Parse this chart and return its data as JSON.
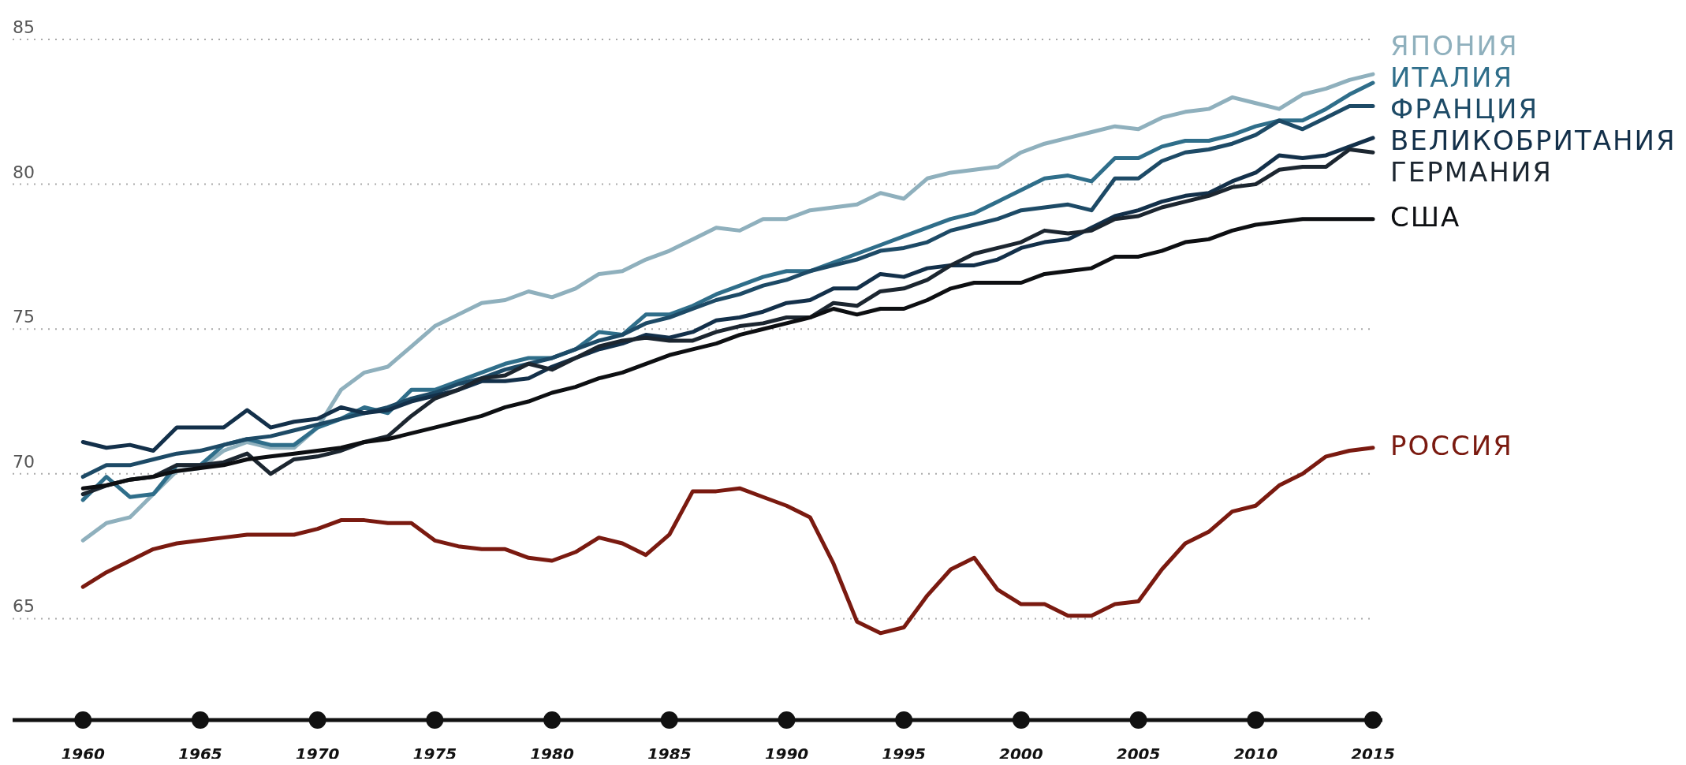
{
  "chart_data": {
    "type": "line",
    "x": [
      1960,
      1961,
      1962,
      1963,
      1964,
      1965,
      1966,
      1967,
      1968,
      1969,
      1970,
      1971,
      1972,
      1973,
      1974,
      1975,
      1976,
      1977,
      1978,
      1979,
      1980,
      1981,
      1982,
      1983,
      1984,
      1985,
      1986,
      1987,
      1988,
      1989,
      1990,
      1991,
      1992,
      1993,
      1994,
      1995,
      1996,
      1997,
      1998,
      1999,
      2000,
      2001,
      2002,
      2003,
      2004,
      2005,
      2006,
      2007,
      2008,
      2009,
      2010,
      2011,
      2012,
      2013,
      2014,
      2015
    ],
    "xlim": [
      1957,
      2015
    ],
    "xticks": [
      1960,
      1965,
      1970,
      1975,
      1980,
      1985,
      1990,
      1995,
      2000,
      2005,
      2010,
      2015
    ],
    "ylim": [
      61.5,
      85
    ],
    "yticks": [
      65,
      70,
      75,
      80,
      85
    ],
    "grid": "y",
    "legend": false,
    "marker": "none",
    "line_style": "solid",
    "series": [
      {
        "name": "ЯПОНИЯ",
        "color": "#8fb0bd",
        "values": [
          67.7,
          68.3,
          68.5,
          69.3,
          70.1,
          70.2,
          70.8,
          71.1,
          70.9,
          70.9,
          71.6,
          72.9,
          73.5,
          73.7,
          74.4,
          75.1,
          75.5,
          75.9,
          76.0,
          76.3,
          76.1,
          76.4,
          76.9,
          77.0,
          77.4,
          77.7,
          78.1,
          78.5,
          78.4,
          78.8,
          78.8,
          79.1,
          79.2,
          79.3,
          79.7,
          79.5,
          80.2,
          80.4,
          80.5,
          80.6,
          81.1,
          81.4,
          81.6,
          81.8,
          82.0,
          81.9,
          82.3,
          82.5,
          82.6,
          83.0,
          82.8,
          82.6,
          83.1,
          83.3,
          83.6,
          83.8
        ]
      },
      {
        "name": "ИТАЛИЯ",
        "color": "#2f6e8a",
        "values": [
          69.1,
          69.9,
          69.2,
          69.3,
          70.3,
          70.3,
          71.0,
          71.2,
          71.0,
          71.0,
          71.6,
          71.9,
          72.3,
          72.1,
          72.9,
          72.9,
          73.2,
          73.5,
          73.8,
          74.0,
          74.0,
          74.3,
          74.9,
          74.8,
          75.5,
          75.5,
          75.8,
          76.2,
          76.5,
          76.8,
          77.0,
          77.0,
          77.3,
          77.6,
          77.9,
          78.2,
          78.5,
          78.8,
          79.0,
          79.4,
          79.8,
          80.2,
          80.3,
          80.1,
          80.9,
          80.9,
          81.3,
          81.5,
          81.5,
          81.7,
          82.0,
          82.2,
          82.2,
          82.6,
          83.1,
          83.5
        ]
      },
      {
        "name": "ФРАНЦИЯ",
        "color": "#1d4a66",
        "values": [
          69.9,
          70.3,
          70.3,
          70.5,
          70.7,
          70.8,
          71.0,
          71.2,
          71.3,
          71.5,
          71.7,
          71.9,
          72.1,
          72.3,
          72.6,
          72.8,
          73.1,
          73.3,
          73.6,
          73.8,
          74.0,
          74.3,
          74.6,
          74.8,
          75.2,
          75.4,
          75.7,
          76.0,
          76.2,
          76.5,
          76.7,
          77.0,
          77.2,
          77.4,
          77.7,
          77.8,
          78.0,
          78.4,
          78.6,
          78.8,
          79.1,
          79.2,
          79.3,
          79.1,
          80.2,
          80.2,
          80.8,
          81.1,
          81.2,
          81.4,
          81.7,
          82.2,
          81.9,
          82.3,
          82.7,
          82.7
        ]
      },
      {
        "name": "ВЕЛИКОБРИТАНИЯ",
        "color": "#13304a",
        "values": [
          71.1,
          70.9,
          71.0,
          70.8,
          71.6,
          71.6,
          71.6,
          72.2,
          71.6,
          71.8,
          71.9,
          72.3,
          72.1,
          72.2,
          72.5,
          72.7,
          72.9,
          73.2,
          73.2,
          73.3,
          73.7,
          74.0,
          74.3,
          74.5,
          74.8,
          74.7,
          74.9,
          75.3,
          75.4,
          75.6,
          75.9,
          76.0,
          76.4,
          76.4,
          76.9,
          76.8,
          77.1,
          77.2,
          77.2,
          77.4,
          77.8,
          78.0,
          78.1,
          78.5,
          78.9,
          79.1,
          79.4,
          79.6,
          79.7,
          80.1,
          80.4,
          81.0,
          80.9,
          81.0,
          81.3,
          81.6
        ]
      },
      {
        "name": "ГЕРМАНИЯ",
        "color": "#1c2630",
        "values": [
          69.3,
          69.6,
          69.8,
          69.9,
          70.3,
          70.3,
          70.4,
          70.7,
          70.0,
          70.5,
          70.6,
          70.8,
          71.1,
          71.3,
          72.0,
          72.6,
          72.9,
          73.3,
          73.4,
          73.8,
          73.6,
          74.0,
          74.4,
          74.6,
          74.7,
          74.6,
          74.6,
          74.9,
          75.1,
          75.2,
          75.4,
          75.4,
          75.9,
          75.8,
          76.3,
          76.4,
          76.7,
          77.2,
          77.6,
          77.8,
          78.0,
          78.4,
          78.3,
          78.4,
          78.8,
          78.9,
          79.2,
          79.4,
          79.6,
          79.9,
          80.0,
          80.5,
          80.6,
          80.6,
          81.2,
          81.1
        ]
      },
      {
        "name": "США",
        "color": "#0d0f12",
        "values": [
          69.5,
          69.6,
          69.8,
          69.9,
          70.1,
          70.2,
          70.3,
          70.5,
          70.6,
          70.7,
          70.8,
          70.9,
          71.1,
          71.2,
          71.4,
          71.6,
          71.8,
          72.0,
          72.3,
          72.5,
          72.8,
          73.0,
          73.3,
          73.5,
          73.8,
          74.1,
          74.3,
          74.5,
          74.8,
          75.0,
          75.2,
          75.4,
          75.7,
          75.5,
          75.7,
          75.7,
          76.0,
          76.4,
          76.6,
          76.6,
          76.6,
          76.9,
          77.0,
          77.1,
          77.5,
          77.5,
          77.7,
          78.0,
          78.1,
          78.4,
          78.6,
          78.7,
          78.8,
          78.8,
          78.8,
          78.8
        ]
      },
      {
        "name": "РОССИЯ",
        "color": "#7a1a10",
        "values": [
          66.1,
          66.6,
          67.0,
          67.4,
          67.6,
          67.7,
          67.8,
          67.9,
          67.9,
          67.9,
          68.1,
          68.4,
          68.4,
          68.3,
          68.3,
          67.7,
          67.5,
          67.4,
          67.4,
          67.1,
          67.0,
          67.3,
          67.8,
          67.6,
          67.2,
          67.9,
          69.4,
          69.4,
          69.5,
          69.2,
          68.9,
          68.5,
          66.9,
          64.9,
          64.5,
          64.7,
          65.8,
          66.7,
          67.1,
          66.0,
          65.5,
          65.5,
          65.1,
          65.1,
          65.5,
          65.6,
          66.7,
          67.6,
          68.0,
          68.7,
          68.9,
          69.6,
          70.0,
          70.6,
          70.8,
          70.9
        ]
      }
    ]
  }
}
